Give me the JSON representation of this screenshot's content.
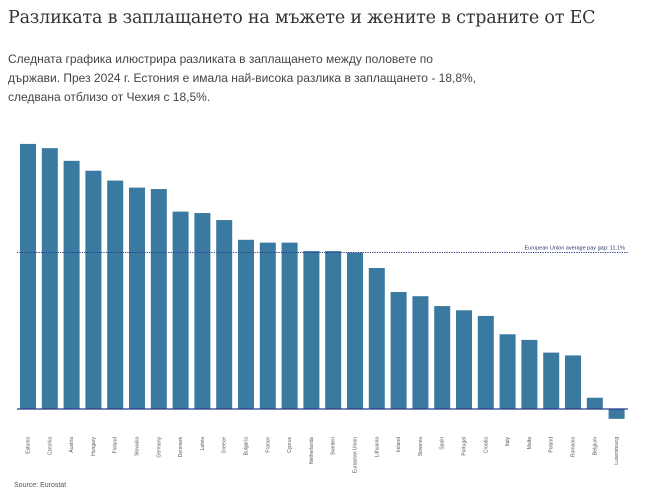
{
  "header": {
    "title": "Разликата в заплащането на мъжете и жените в страните от ЕС",
    "subtitle": "Следната графика илюстрира разликата в заплащането между половете по държави. През 2024 г. Естония е имала най-висока разлика в заплащането - 18,8%, следвана отблизо от Чехия с 18,5%."
  },
  "footer": {
    "source": "Source: Eurostat"
  },
  "colors": {
    "bar": "#3a7aa0",
    "reference_line": "#2b3a8c",
    "baseline": "#2b3a8c"
  },
  "chart_data": {
    "type": "bar",
    "title": "",
    "xlabel": "",
    "ylabel": "",
    "ylim": [
      -1,
      19
    ],
    "grid": false,
    "categories": [
      "Estonia",
      "Czechia",
      "Austria",
      "Hungary",
      "Finland",
      "Slovakia",
      "Germany",
      "Denmark",
      "Latvia",
      "Greece",
      "Bulgaria",
      "France",
      "Cyprus",
      "Netherlands",
      "Sweden",
      "European Union",
      "Lithuania",
      "Ireland",
      "Slovenia",
      "Spain",
      "Portugal",
      "Croatia",
      "Italy",
      "Malta",
      "Poland",
      "Romania",
      "Belgium",
      "Luxembourg"
    ],
    "values": [
      18.8,
      18.5,
      17.6,
      16.9,
      16.2,
      15.7,
      15.6,
      14.0,
      13.9,
      13.4,
      12.0,
      11.8,
      11.8,
      11.2,
      11.2,
      11.1,
      10.0,
      8.3,
      8.0,
      7.3,
      7.0,
      6.6,
      5.3,
      4.9,
      4.0,
      3.8,
      0.8,
      -0.7
    ],
    "reference_line": {
      "value": 11.1,
      "label": "European Union average pay gap: 11.1%"
    }
  }
}
